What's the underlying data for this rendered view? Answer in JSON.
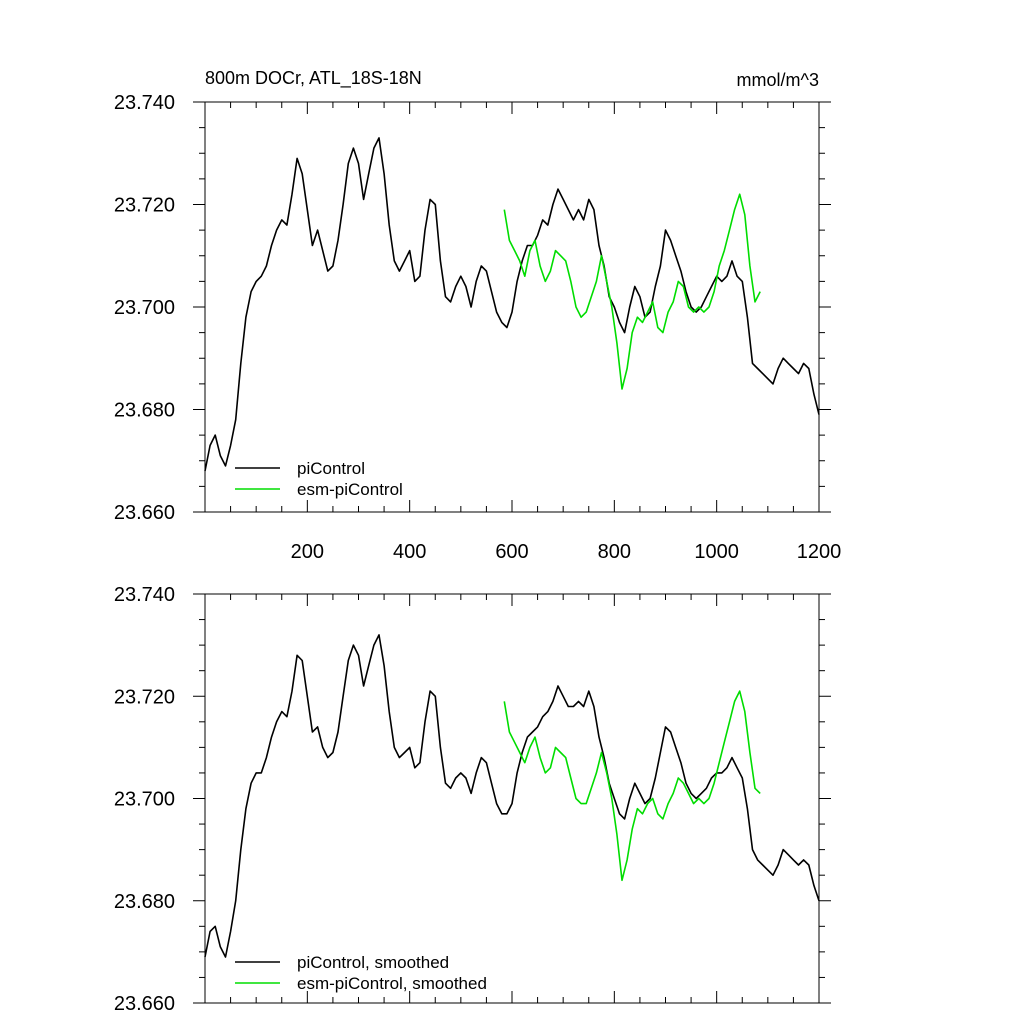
{
  "chart_data": [
    {
      "type": "line",
      "title": "800m DOCr, ATL_18S-18N",
      "units": "mmol/m^3",
      "xlim": [
        0,
        1200
      ],
      "ylim": [
        23.66,
        23.74
      ],
      "xticks": [
        200,
        400,
        600,
        800,
        1000,
        1200
      ],
      "xtick_labels": [
        "200",
        "400",
        "600",
        "800",
        "1000",
        "1200"
      ],
      "yticks": [
        23.66,
        23.68,
        23.7,
        23.72,
        23.74
      ],
      "ytick_labels": [
        "23.660",
        "23.680",
        "23.700",
        "23.720",
        "23.740"
      ],
      "legend_position": "bottom-left",
      "grid": false,
      "series": [
        {
          "name": "piControl",
          "color": "#000000",
          "x": [
            0,
            10,
            20,
            30,
            40,
            50,
            60,
            70,
            80,
            90,
            100,
            110,
            120,
            130,
            140,
            150,
            160,
            170,
            180,
            190,
            200,
            210,
            220,
            230,
            240,
            250,
            260,
            270,
            280,
            290,
            300,
            310,
            320,
            330,
            340,
            350,
            360,
            370,
            380,
            390,
            400,
            410,
            420,
            430,
            440,
            450,
            460,
            470,
            480,
            490,
            500,
            510,
            520,
            530,
            540,
            550,
            560,
            570,
            580,
            590,
            600,
            610,
            620,
            630,
            640,
            650,
            660,
            670,
            680,
            690,
            700,
            710,
            720,
            730,
            740,
            750,
            760,
            770,
            780,
            790,
            800,
            810,
            820,
            830,
            840,
            850,
            860,
            870,
            880,
            890,
            900,
            910,
            920,
            930,
            940,
            950,
            960,
            970,
            980,
            990,
            1000,
            1010,
            1020,
            1030,
            1040,
            1050,
            1060,
            1070,
            1080,
            1090,
            1100,
            1110,
            1120,
            1130,
            1140,
            1150,
            1160,
            1170,
            1180,
            1190,
            1200
          ],
          "values": [
            23.668,
            23.673,
            23.675,
            23.671,
            23.669,
            23.673,
            23.678,
            23.689,
            23.698,
            23.703,
            23.705,
            23.706,
            23.708,
            23.712,
            23.715,
            23.717,
            23.716,
            23.722,
            23.729,
            23.726,
            23.719,
            23.712,
            23.715,
            23.711,
            23.707,
            23.708,
            23.713,
            23.72,
            23.728,
            23.731,
            23.728,
            23.721,
            23.726,
            23.731,
            23.733,
            23.726,
            23.716,
            23.709,
            23.707,
            23.709,
            23.711,
            23.705,
            23.706,
            23.715,
            23.721,
            23.72,
            23.709,
            23.702,
            23.701,
            23.704,
            23.706,
            23.704,
            23.7,
            23.705,
            23.708,
            23.707,
            23.703,
            23.699,
            23.697,
            23.696,
            23.699,
            23.705,
            23.709,
            23.712,
            23.712,
            23.714,
            23.717,
            23.716,
            23.72,
            23.723,
            23.721,
            23.719,
            23.717,
            23.719,
            23.717,
            23.721,
            23.719,
            23.712,
            23.708,
            23.702,
            23.7,
            23.697,
            23.695,
            23.7,
            23.704,
            23.702,
            23.698,
            23.699,
            23.704,
            23.708,
            23.715,
            23.713,
            23.71,
            23.707,
            23.703,
            23.7,
            23.699,
            23.7,
            23.702,
            23.704,
            23.706,
            23.705,
            23.706,
            23.709,
            23.706,
            23.705,
            23.698,
            23.689,
            23.688,
            23.687,
            23.686,
            23.685,
            23.688,
            23.69,
            23.689,
            23.688,
            23.687,
            23.689,
            23.688,
            23.683,
            23.679
          ]
        },
        {
          "name": "esm-piControl",
          "color": "#00dd00",
          "x": [
            585,
            595,
            605,
            615,
            625,
            635,
            645,
            655,
            665,
            675,
            685,
            695,
            705,
            715,
            725,
            735,
            745,
            755,
            765,
            775,
            785,
            795,
            805,
            815,
            825,
            835,
            845,
            855,
            865,
            875,
            885,
            895,
            905,
            915,
            925,
            935,
            945,
            955,
            965,
            975,
            985,
            995,
            1005,
            1015,
            1025,
            1035,
            1045,
            1055,
            1065,
            1075,
            1085
          ],
          "values": [
            23.719,
            23.713,
            23.711,
            23.709,
            23.706,
            23.711,
            23.713,
            23.708,
            23.705,
            23.707,
            23.711,
            23.71,
            23.709,
            23.705,
            23.7,
            23.698,
            23.699,
            23.702,
            23.705,
            23.71,
            23.705,
            23.7,
            23.693,
            23.684,
            23.688,
            23.695,
            23.698,
            23.697,
            23.699,
            23.701,
            23.696,
            23.695,
            23.699,
            23.701,
            23.705,
            23.704,
            23.7,
            23.699,
            23.7,
            23.699,
            23.7,
            23.703,
            23.708,
            23.711,
            23.715,
            23.719,
            23.722,
            23.718,
            23.708,
            23.701,
            23.703
          ]
        }
      ]
    },
    {
      "type": "line",
      "title": "",
      "xlim": [
        0,
        1200
      ],
      "ylim": [
        23.66,
        23.74
      ],
      "yticks": [
        23.66,
        23.68,
        23.7,
        23.72,
        23.74
      ],
      "ytick_labels": [
        "23.660",
        "23.680",
        "23.700",
        "23.720",
        "23.740"
      ],
      "legend_position": "bottom-left",
      "grid": false,
      "series": [
        {
          "name": "piControl, smoothed",
          "color": "#000000",
          "x": [
            0,
            10,
            20,
            30,
            40,
            50,
            60,
            70,
            80,
            90,
            100,
            110,
            120,
            130,
            140,
            150,
            160,
            170,
            180,
            190,
            200,
            210,
            220,
            230,
            240,
            250,
            260,
            270,
            280,
            290,
            300,
            310,
            320,
            330,
            340,
            350,
            360,
            370,
            380,
            390,
            400,
            410,
            420,
            430,
            440,
            450,
            460,
            470,
            480,
            490,
            500,
            510,
            520,
            530,
            540,
            550,
            560,
            570,
            580,
            590,
            600,
            610,
            620,
            630,
            640,
            650,
            660,
            670,
            680,
            690,
            700,
            710,
            720,
            730,
            740,
            750,
            760,
            770,
            780,
            790,
            800,
            810,
            820,
            830,
            840,
            850,
            860,
            870,
            880,
            890,
            900,
            910,
            920,
            930,
            940,
            950,
            960,
            970,
            980,
            990,
            1000,
            1010,
            1020,
            1030,
            1040,
            1050,
            1060,
            1070,
            1080,
            1090,
            1100,
            1110,
            1120,
            1130,
            1140,
            1150,
            1160,
            1170,
            1180,
            1190,
            1200
          ],
          "values": [
            23.669,
            23.674,
            23.675,
            23.671,
            23.669,
            23.674,
            23.68,
            23.69,
            23.698,
            23.703,
            23.705,
            23.705,
            23.708,
            23.712,
            23.715,
            23.717,
            23.716,
            23.721,
            23.728,
            23.727,
            23.72,
            23.713,
            23.714,
            23.71,
            23.708,
            23.709,
            23.713,
            23.72,
            23.727,
            23.73,
            23.728,
            23.722,
            23.726,
            23.73,
            23.732,
            23.726,
            23.717,
            23.71,
            23.708,
            23.709,
            23.71,
            23.706,
            23.707,
            23.715,
            23.721,
            23.72,
            23.71,
            23.703,
            23.702,
            23.704,
            23.705,
            23.704,
            23.701,
            23.705,
            23.708,
            23.707,
            23.703,
            23.699,
            23.697,
            23.697,
            23.699,
            23.705,
            23.709,
            23.712,
            23.713,
            23.714,
            23.716,
            23.717,
            23.719,
            23.722,
            23.72,
            23.718,
            23.718,
            23.719,
            23.718,
            23.721,
            23.718,
            23.712,
            23.708,
            23.703,
            23.7,
            23.697,
            23.696,
            23.7,
            23.703,
            23.701,
            23.699,
            23.7,
            23.704,
            23.709,
            23.714,
            23.713,
            23.71,
            23.707,
            23.703,
            23.701,
            23.7,
            23.701,
            23.702,
            23.704,
            23.705,
            23.705,
            23.706,
            23.708,
            23.706,
            23.704,
            23.698,
            23.69,
            23.688,
            23.687,
            23.686,
            23.685,
            23.687,
            23.69,
            23.689,
            23.688,
            23.687,
            23.688,
            23.687,
            23.683,
            23.68
          ]
        },
        {
          "name": "esm-piControl, smoothed",
          "color": "#00dd00",
          "x": [
            585,
            595,
            605,
            615,
            625,
            635,
            645,
            655,
            665,
            675,
            685,
            695,
            705,
            715,
            725,
            735,
            745,
            755,
            765,
            775,
            785,
            795,
            805,
            815,
            825,
            835,
            845,
            855,
            865,
            875,
            885,
            895,
            905,
            915,
            925,
            935,
            945,
            955,
            965,
            975,
            985,
            995,
            1005,
            1015,
            1025,
            1035,
            1045,
            1055,
            1065,
            1075,
            1085
          ],
          "values": [
            23.719,
            23.713,
            23.711,
            23.709,
            23.707,
            23.71,
            23.712,
            23.708,
            23.705,
            23.706,
            23.71,
            23.709,
            23.708,
            23.704,
            23.7,
            23.699,
            23.699,
            23.702,
            23.705,
            23.709,
            23.705,
            23.7,
            23.693,
            23.684,
            23.688,
            23.694,
            23.698,
            23.697,
            23.699,
            23.7,
            23.697,
            23.696,
            23.699,
            23.701,
            23.704,
            23.703,
            23.701,
            23.699,
            23.7,
            23.699,
            23.7,
            23.703,
            23.707,
            23.711,
            23.715,
            23.719,
            23.721,
            23.717,
            23.709,
            23.702,
            23.701
          ]
        }
      ]
    }
  ]
}
